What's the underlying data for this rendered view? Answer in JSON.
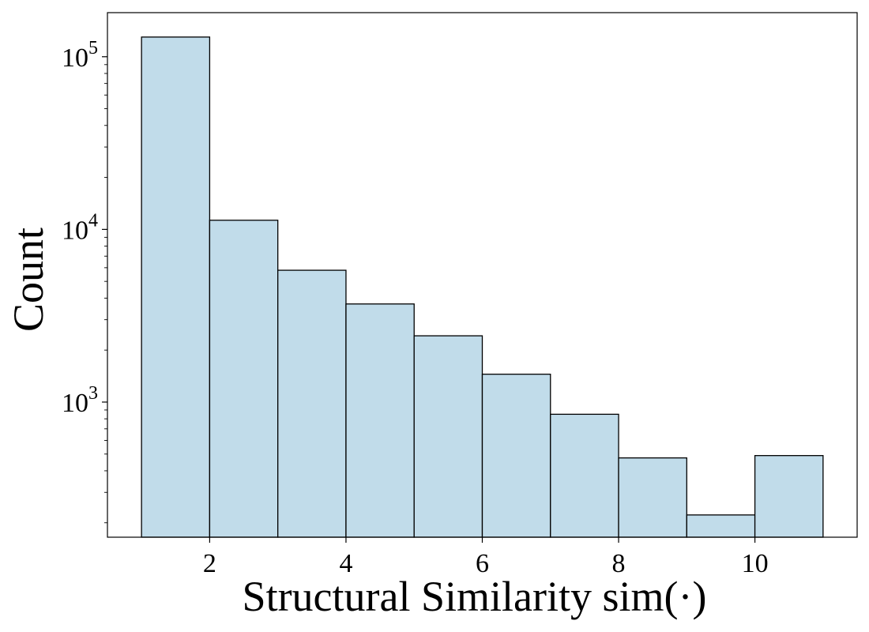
{
  "chart_data": {
    "type": "bar",
    "subtype": "histogram",
    "xlabel": "Structural Similarity sim(·)",
    "ylabel": "Count",
    "yscale": "log",
    "xlim": [
      0.5,
      11.5
    ],
    "ylim": [
      165,
      180000
    ],
    "x_ticks": [
      2,
      4,
      6,
      8,
      10
    ],
    "y_major_ticks": [
      {
        "value": 1000,
        "base": "10",
        "exp": "3"
      },
      {
        "value": 10000,
        "base": "10",
        "exp": "4"
      },
      {
        "value": 100000,
        "base": "10",
        "exp": "5"
      }
    ],
    "bins": [
      {
        "x0": 1,
        "x1": 2,
        "count": 130000
      },
      {
        "x0": 2,
        "x1": 3,
        "count": 11300
      },
      {
        "x0": 3,
        "x1": 4,
        "count": 5800
      },
      {
        "x0": 4,
        "x1": 5,
        "count": 3700
      },
      {
        "x0": 5,
        "x1": 6,
        "count": 2420
      },
      {
        "x0": 6,
        "x1": 7,
        "count": 1450
      },
      {
        "x0": 7,
        "x1": 8,
        "count": 850
      },
      {
        "x0": 8,
        "x1": 9,
        "count": 475
      },
      {
        "x0": 9,
        "x1": 10,
        "count": 222
      },
      {
        "x0": 10,
        "x1": 11,
        "count": 490
      }
    ],
    "grid": false,
    "legend": "none",
    "colors": {
      "bar_fill": "#c1dcea",
      "bar_edge": "#000000",
      "axis": "#000000"
    }
  }
}
